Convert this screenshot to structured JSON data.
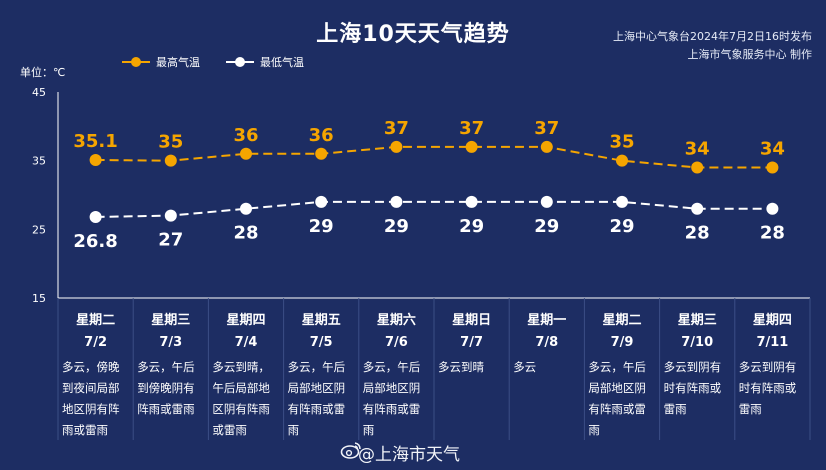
{
  "header": {
    "title": "上海10天天气趋势",
    "publisher_line1": "上海中心气象台2024年7月2日16时发布",
    "publisher_line2": "上海市气象服务中心 制作",
    "footer": "@上海市天气"
  },
  "colors": {
    "background": "#1d2d63",
    "high": "#f5a500",
    "low": "#ffffff",
    "grid": "#3b4e86"
  },
  "chart_data": {
    "type": "line",
    "unit_label": "单位：℃",
    "ylim": [
      15,
      45
    ],
    "yticks": [
      "45",
      "35",
      "25",
      "15"
    ],
    "legend_position": "top-left",
    "grid": true,
    "series": [
      {
        "name": "最高气温",
        "values": [
          35.1,
          35,
          36,
          36,
          37,
          37,
          37,
          35,
          34,
          34
        ],
        "labels": [
          "35.1",
          "35",
          "36",
          "36",
          "37",
          "37",
          "37",
          "35",
          "34",
          "34"
        ]
      },
      {
        "name": "最低气温",
        "values": [
          26.8,
          27,
          28,
          29,
          29,
          29,
          29,
          29,
          28,
          28
        ],
        "labels": [
          "26.8",
          "27",
          "28",
          "29",
          "29",
          "29",
          "29",
          "29",
          "28",
          "28"
        ]
      }
    ],
    "days": [
      {
        "weekday": "星期二",
        "date": "7/2",
        "weather": [
          "多云，傍晚",
          "到夜间局部",
          "地区阴有阵",
          "雨或雷雨"
        ]
      },
      {
        "weekday": "星期三",
        "date": "7/3",
        "weather": [
          "多云，午后",
          "到傍晚阴有",
          "阵雨或雷雨"
        ]
      },
      {
        "weekday": "星期四",
        "date": "7/4",
        "weather": [
          "多云到晴，",
          "午后局部地",
          "区阴有阵雨",
          "或雷雨"
        ]
      },
      {
        "weekday": "星期五",
        "date": "7/5",
        "weather": [
          "多云，午后",
          "局部地区阴",
          "有阵雨或雷",
          "雨"
        ]
      },
      {
        "weekday": "星期六",
        "date": "7/6",
        "weather": [
          "多云，午后",
          "局部地区阴",
          "有阵雨或雷",
          "雨"
        ]
      },
      {
        "weekday": "星期日",
        "date": "7/7",
        "weather": [
          "多云到晴"
        ]
      },
      {
        "weekday": "星期一",
        "date": "7/8",
        "weather": [
          "多云"
        ]
      },
      {
        "weekday": "星期二",
        "date": "7/9",
        "weather": [
          "多云，午后",
          "局部地区阴",
          "有阵雨或雷",
          "雨"
        ]
      },
      {
        "weekday": "星期三",
        "date": "7/10",
        "weather": [
          "多云到阴有",
          "时有阵雨或",
          "雷雨"
        ]
      },
      {
        "weekday": "星期四",
        "date": "7/11",
        "weather": [
          "多云到阴有",
          "时有阵雨或",
          "雷雨"
        ]
      }
    ]
  }
}
